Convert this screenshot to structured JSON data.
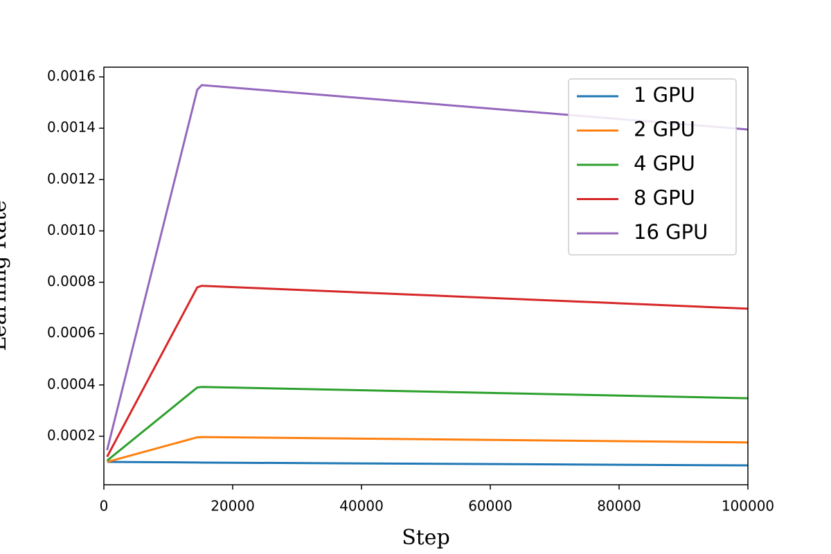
{
  "chart_data": {
    "type": "line",
    "xlabel": "Step",
    "ylabel": "Learning Rate",
    "x": [
      500,
      14500,
      15200,
      100000
    ],
    "series": [
      {
        "name": "1 GPU",
        "color": "#1f77b4",
        "values": [
          0.0001,
          9.78e-05,
          9.75e-05,
          8.65e-05
        ]
      },
      {
        "name": "2 GPU",
        "color": "#ff7f0e",
        "values": [
          0.0001,
          0.000196,
          0.000197,
          0.000176
        ]
      },
      {
        "name": "4 GPU",
        "color": "#2ca02c",
        "values": [
          0.000105,
          0.00039,
          0.000392,
          0.000348
        ]
      },
      {
        "name": "8 GPU",
        "color": "#d62728",
        "values": [
          0.00012,
          0.00078,
          0.000786,
          0.000697
        ]
      },
      {
        "name": "16 GPU",
        "color": "#9467bd",
        "values": [
          0.000146,
          0.00155,
          0.001568,
          0.001395
        ]
      }
    ],
    "xlim": [
      0,
      100000
    ],
    "xticks": [
      0,
      20000,
      40000,
      60000,
      80000,
      100000
    ],
    "ylim": [
      1.11e-05,
      0.0016378
    ],
    "yticks": [
      0.0002,
      0.0004,
      0.0006,
      0.0008,
      {
        "value": 0.001,
        "label": "0.0010"
      },
      0.0012,
      0.0014,
      0.0016
    ],
    "legend": "upper right"
  }
}
